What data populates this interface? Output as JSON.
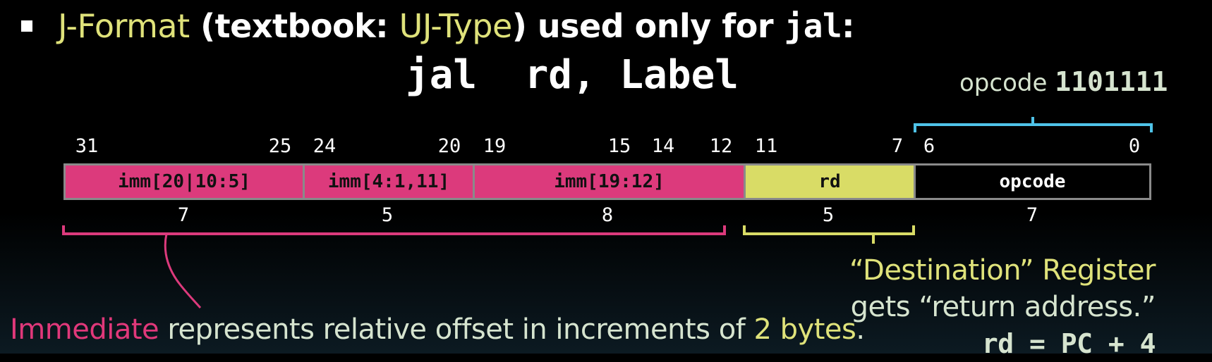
{
  "title": {
    "part1": "J-Format",
    "part2": " (textbook: ",
    "part3": "UJ-Type",
    "part4": ") used only for ",
    "part5": "jal",
    "part6": ":"
  },
  "syntax": "jal  rd, Label",
  "opcode_label": {
    "text": "opcode ",
    "value": "1101111"
  },
  "bit_numbers": [
    "31",
    "25",
    "24",
    "20",
    "19",
    "15",
    "14",
    "12",
    "11",
    "7",
    "6",
    "0"
  ],
  "fields": [
    {
      "label": "imm[20|10:5]",
      "width": "7",
      "color": "#dc3a7c"
    },
    {
      "label": "imm[4:1,11]",
      "width": "5",
      "color": "#dc3a7c"
    },
    {
      "label": "imm[19:12]",
      "width": "8",
      "color": "#dc3a7c"
    },
    {
      "label": "rd",
      "width": "5",
      "color": "#d9dc66"
    },
    {
      "label": "opcode",
      "width": "7",
      "color": "#000000"
    }
  ],
  "imm_note": {
    "part1": "Immediate",
    "part2": " represents relative offset in increments of ",
    "part3": "2 bytes",
    "part4": "."
  },
  "dest_note": {
    "line1": "“Destination” Register",
    "line2": "gets “return address.”",
    "line3": "rd = PC + 4"
  },
  "colors": {
    "pink": "#dc3a7c",
    "yellow": "#d9dc66",
    "cyan": "#4fc3e8",
    "text_yellow": "#dfe27a"
  }
}
